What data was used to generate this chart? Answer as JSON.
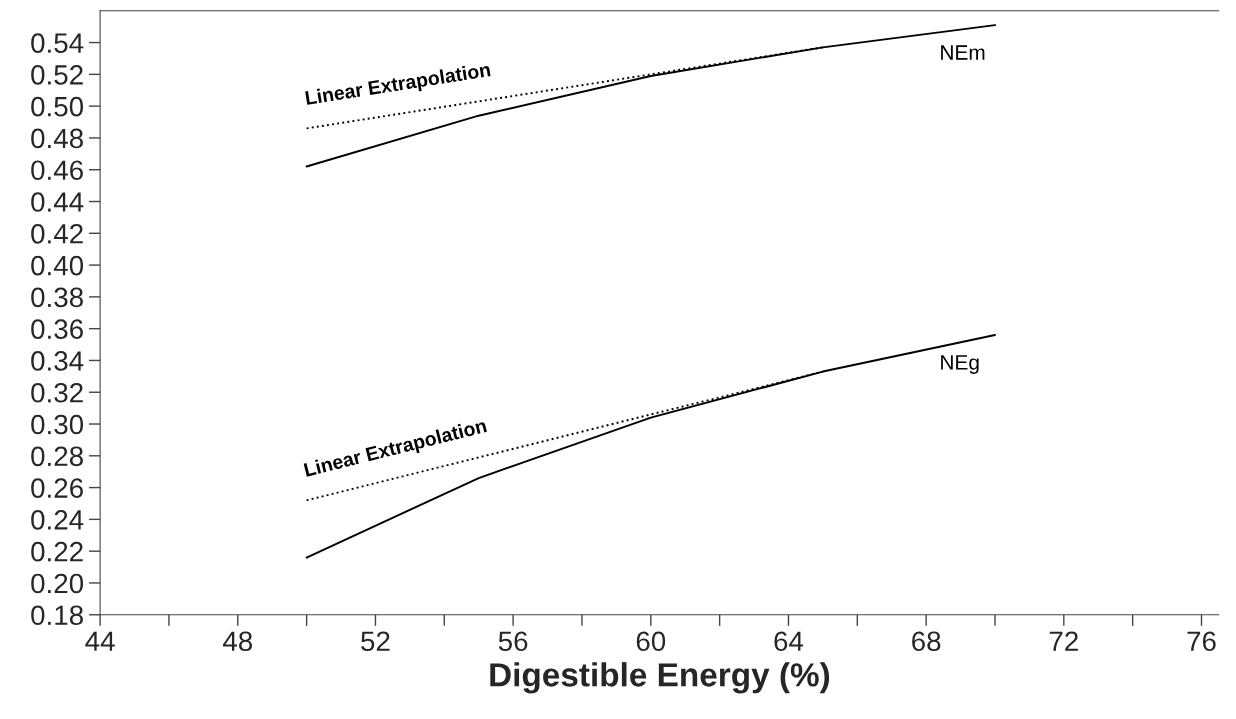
{
  "chart_data": {
    "type": "line",
    "xlabel": "Digestible Energy (%)",
    "series": [
      {
        "name": "NEm",
        "color": "#000000",
        "line_style": "solid",
        "x": [
          50,
          55,
          60,
          65,
          70
        ],
        "values": [
          0.462,
          0.494,
          0.519,
          0.537,
          0.551
        ]
      },
      {
        "name": "Linear Extrapolation",
        "color": "#000000",
        "line_style": "dotted",
        "x": [
          50,
          65
        ],
        "values": [
          0.486,
          0.537
        ]
      },
      {
        "name": "NEg",
        "color": "#000000",
        "line_style": "solid",
        "x": [
          50,
          55,
          60,
          65,
          70
        ],
        "values": [
          0.216,
          0.266,
          0.304,
          0.333,
          0.356
        ]
      },
      {
        "name": "Linear Extrapolation",
        "color": "#000000",
        "line_style": "dotted",
        "x": [
          50,
          65
        ],
        "values": [
          0.252,
          0.333
        ]
      }
    ],
    "xlim": [
      44,
      76.5
    ],
    "xticks": [
      44,
      {
        "value": 46,
        "label": null
      },
      48,
      {
        "value": 50,
        "label": null
      },
      52,
      {
        "value": 54,
        "label": null
      },
      56,
      {
        "value": 58,
        "label": null
      },
      60,
      {
        "value": 62,
        "label": null
      },
      64,
      {
        "value": 66,
        "label": null
      },
      68,
      {
        "value": 70,
        "label": null
      },
      72,
      {
        "value": 74,
        "label": null
      },
      76
    ],
    "ylim": [
      0.18,
      0.56
    ],
    "yticks": [
      0.18,
      {
        "value": 0.2,
        "label": "0.20"
      },
      0.22,
      0.24,
      0.26,
      0.28,
      {
        "value": 0.3,
        "label": "0.30"
      },
      0.32,
      0.34,
      0.36,
      0.38,
      {
        "value": 0.4,
        "label": "0.40"
      },
      0.42,
      0.44,
      0.46,
      0.48,
      {
        "value": 0.5,
        "label": "0.50"
      },
      0.52,
      0.54
    ],
    "grid": false,
    "legend": false
  }
}
